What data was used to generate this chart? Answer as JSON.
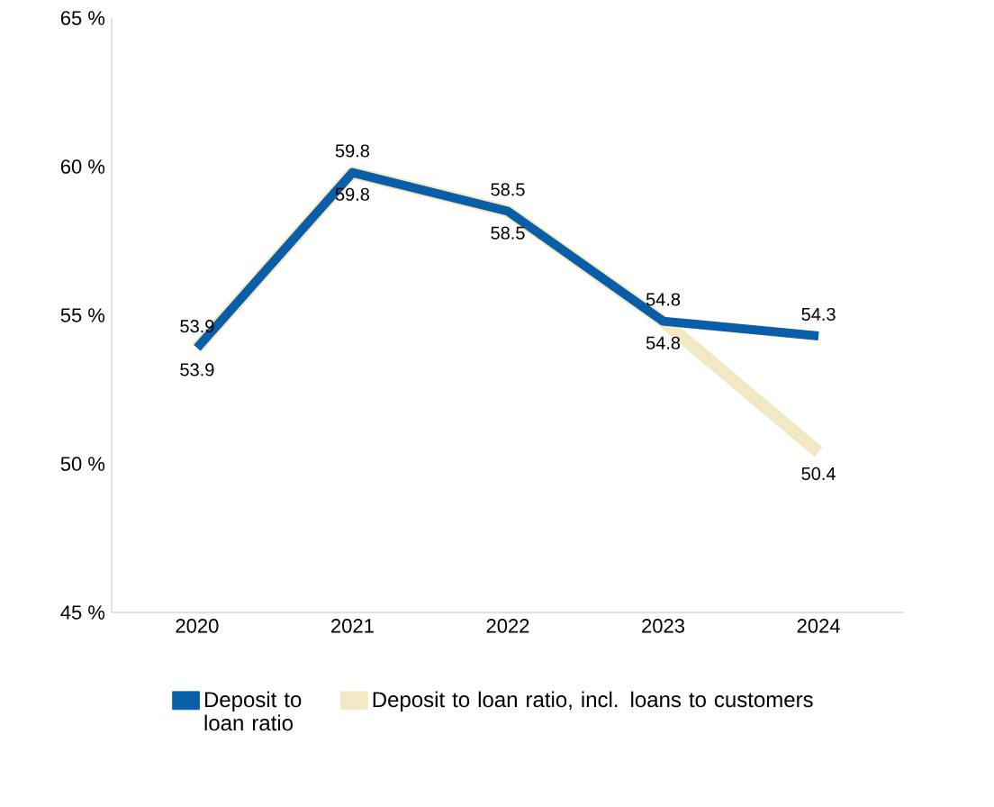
{
  "chart_data": {
    "type": "line",
    "categories": [
      "2020",
      "2021",
      "2022",
      "2023",
      "2024"
    ],
    "series": [
      {
        "name": "Deposit to loan ratio",
        "color": "#0a5ea8",
        "values": [
          53.9,
          59.8,
          58.5,
          54.8,
          54.3
        ]
      },
      {
        "name": "Deposit to loan ratio, incl. loans to customers",
        "color": "#f3e8c4",
        "values": [
          53.9,
          59.8,
          58.5,
          54.8,
          50.4
        ]
      }
    ],
    "ylim": [
      45,
      65
    ],
    "yticks": [
      {
        "value": 45,
        "label": "45 %"
      },
      {
        "value": 50,
        "label": "50 %"
      },
      {
        "value": 55,
        "label": "55 %"
      },
      {
        "value": 60,
        "label": "60 %"
      },
      {
        "value": 65,
        "label": "65 %"
      }
    ],
    "data_labels": true,
    "legend": "bottom",
    "grid": false,
    "marker": "none",
    "line_style": "solid"
  }
}
